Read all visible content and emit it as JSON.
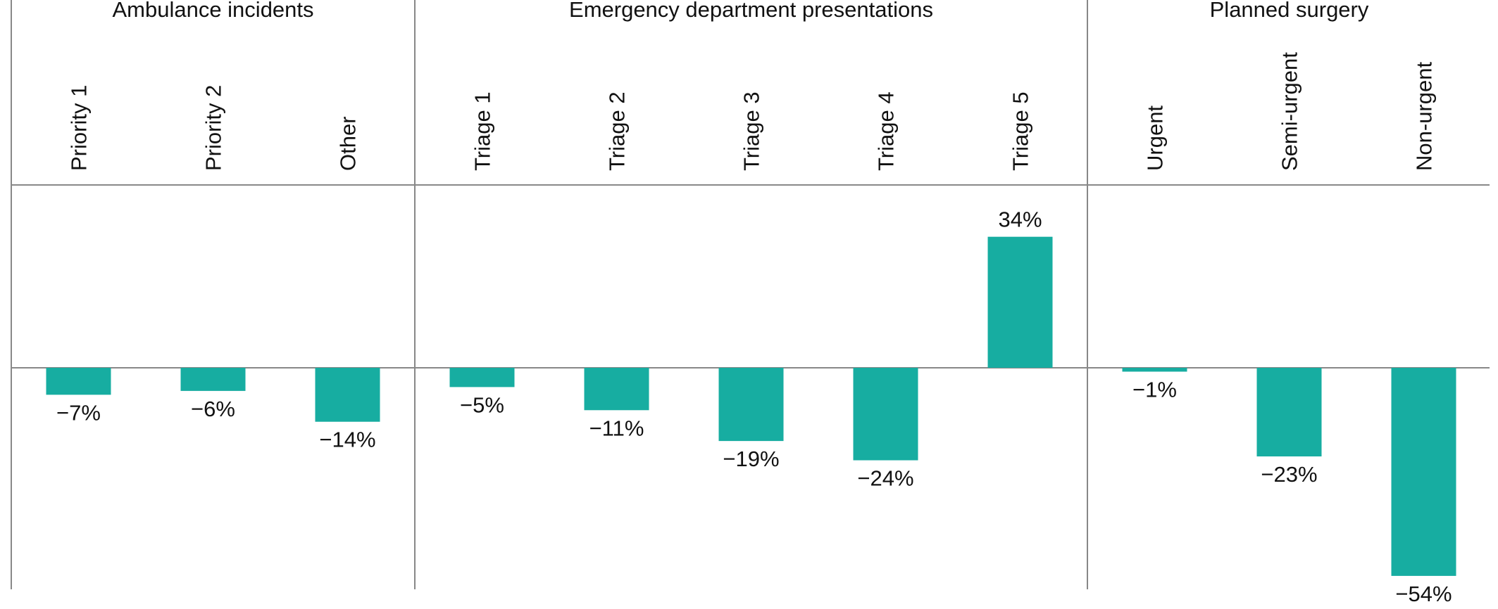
{
  "chart_data": {
    "type": "bar",
    "ylabel": "",
    "ylim": [
      -60,
      52
    ],
    "bar_color": "#17ada1",
    "groups": [
      {
        "title": "Ambulance incidents",
        "categories": [
          "Priority 1",
          "Priority 2",
          "Other"
        ],
        "values": [
          -7,
          -6,
          -14
        ],
        "labels": [
          "−7%",
          "−6%",
          "−14%"
        ]
      },
      {
        "title": "Emergency department presentations",
        "categories": [
          "Triage 1",
          "Triage 2",
          "Triage 3",
          "Triage 4",
          "Triage 5"
        ],
        "values": [
          -5,
          -11,
          -19,
          -24,
          34
        ],
        "labels": [
          "−5%",
          "−11%",
          "−19%",
          "−24%",
          "34%"
        ]
      },
      {
        "title": "Planned surgery",
        "categories": [
          "Urgent",
          "Semi-urgent",
          "Non-urgent"
        ],
        "values": [
          -1,
          -23,
          -54
        ],
        "labels": [
          "−1%",
          "−23%",
          "−54%"
        ]
      }
    ]
  }
}
